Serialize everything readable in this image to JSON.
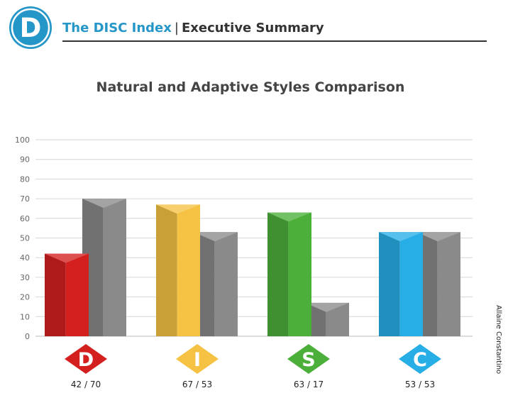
{
  "header": {
    "logo_letter": "D",
    "brand": "The DISC Index",
    "separator": "|",
    "section": "Executive Summary"
  },
  "author": "Allaine Constantino",
  "colors": {
    "brand": "#2596c8",
    "D": "#d41f1f",
    "I": "#f5c244",
    "S": "#4caf3a",
    "C": "#28aee6",
    "adaptive": "#8a8a8a"
  },
  "chart_data": {
    "type": "bar",
    "title": "Natural and Adaptive Styles Comparison",
    "categories": [
      "D",
      "I",
      "S",
      "C"
    ],
    "series": [
      {
        "values": [
          42,
          67,
          63,
          53
        ]
      },
      {
        "values": [
          70,
          53,
          17,
          53
        ]
      }
    ],
    "value_labels": [
      "42 / 70",
      "67 / 53",
      "63 / 17",
      "53 / 53"
    ],
    "yticks": [
      "0",
      "10",
      "20",
      "30",
      "40",
      "50",
      "60",
      "70",
      "80",
      "90",
      "100"
    ],
    "ylim": [
      0,
      100
    ],
    "grid": true
  }
}
